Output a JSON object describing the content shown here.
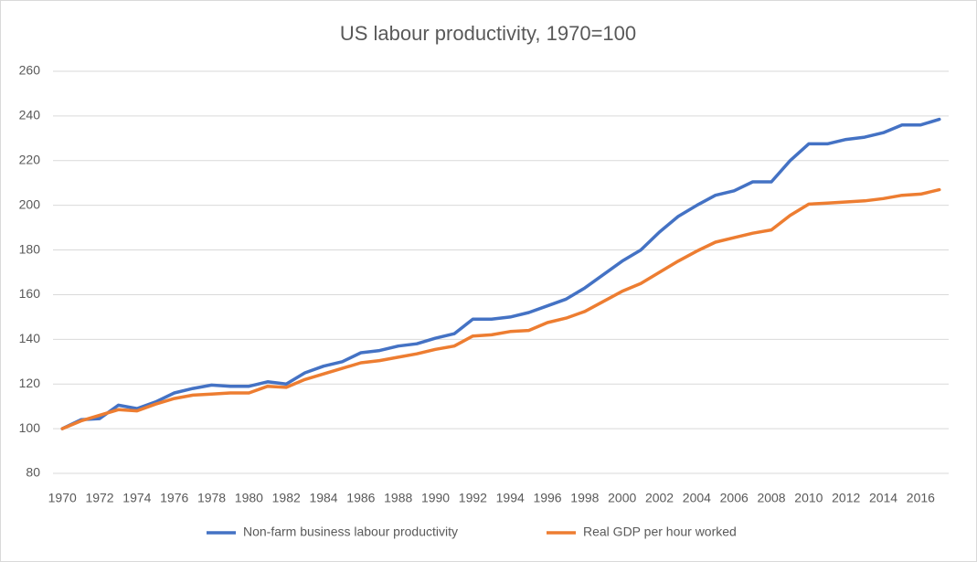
{
  "chart_data": {
    "type": "line",
    "title": "US labour productivity, 1970=100",
    "categories": [
      "1970",
      null,
      "1972",
      null,
      "1974",
      null,
      "1976",
      null,
      "1978",
      null,
      "1980",
      null,
      "1982",
      null,
      "1984",
      null,
      "1986",
      null,
      "1988",
      null,
      "1990",
      null,
      "1992",
      null,
      "1994",
      null,
      "1996",
      null,
      "1998",
      null,
      "2000",
      null,
      "2002",
      null,
      "2004",
      null,
      "2006",
      null,
      "2008",
      null,
      "2010",
      null,
      "2012",
      null,
      "2014",
      null,
      "2016",
      null
    ],
    "series": [
      {
        "name": "Non-farm business labour productivity",
        "color": "#4472c4",
        "values": [
          100,
          104,
          104.5,
          110.5,
          109,
          112,
          116,
          118,
          119.5,
          119,
          119,
          121,
          120,
          125,
          128,
          130,
          134,
          135,
          137,
          138,
          140.5,
          142.5,
          149,
          149,
          150,
          152,
          155,
          158,
          163,
          169,
          175,
          180,
          188,
          195,
          200,
          204.5,
          206.5,
          210.5,
          210.5,
          220,
          227.5,
          227.5,
          229.5,
          230.5,
          232.5,
          236,
          236,
          238.5
        ]
      },
      {
        "name": "Real GDP per hour worked",
        "color": "#ed7d31",
        "values": [
          100,
          103.5,
          106,
          108.5,
          108,
          111,
          113.5,
          115,
          115.5,
          116,
          116,
          119,
          118.5,
          122,
          124.5,
          127,
          129.5,
          130.5,
          132,
          133.5,
          135.5,
          137,
          141.5,
          142,
          143.5,
          144,
          147.5,
          149.5,
          152.5,
          157,
          161.5,
          165,
          170,
          175,
          179.5,
          183.5,
          185.5,
          187.5,
          189,
          195.5,
          200.5,
          201,
          201.5,
          202,
          203,
          204.5,
          205,
          207
        ]
      }
    ],
    "ylim": [
      80,
      260
    ],
    "yticks": [
      80,
      100,
      120,
      140,
      160,
      180,
      200,
      220,
      240,
      260
    ],
    "grid": true,
    "legend": "bottom"
  }
}
